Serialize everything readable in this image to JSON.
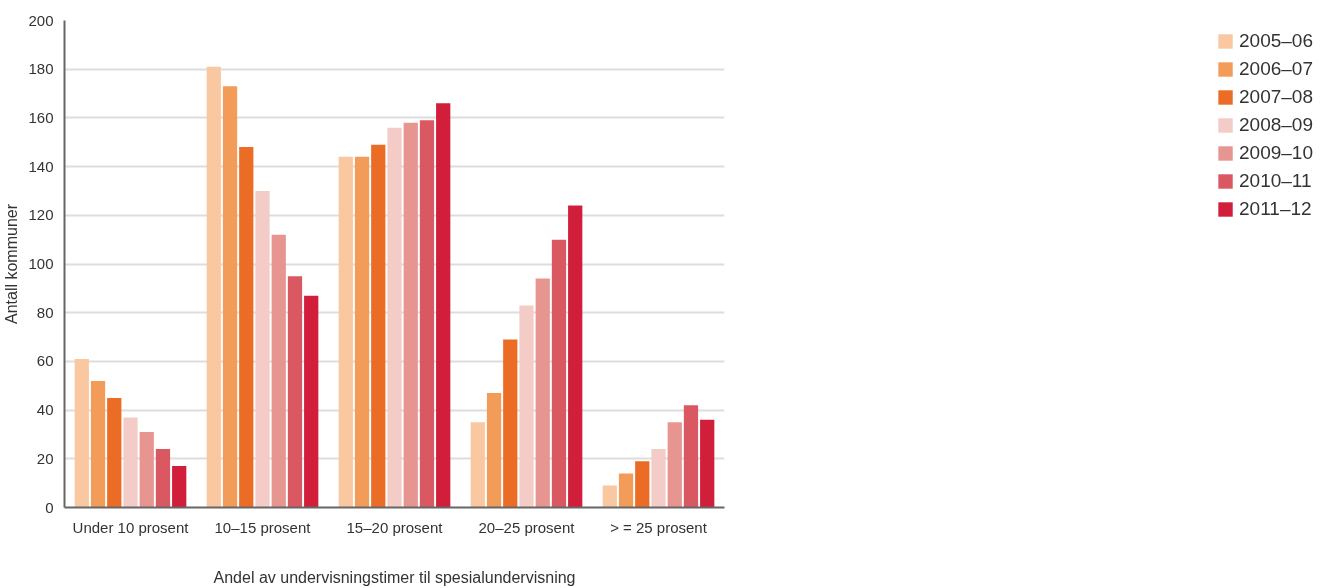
{
  "chart_data": {
    "type": "bar",
    "xlabel": "Andel av undervisningstimer til spesialundervisning",
    "ylabel": "Antall kommuner",
    "categories": [
      "Under 10 prosent",
      "10–15 prosent",
      "15–20 prosent",
      "20–25 prosent",
      "> = 25 prosent"
    ],
    "series": [
      {
        "name": "2005–06",
        "color": "#f9c8a0",
        "values": [
          61,
          181,
          144,
          35,
          9
        ]
      },
      {
        "name": "2006–07",
        "color": "#f39c5a",
        "values": [
          52,
          173,
          144,
          47,
          14
        ]
      },
      {
        "name": "2007–08",
        "color": "#eb6d25",
        "values": [
          45,
          148,
          149,
          69,
          19
        ]
      },
      {
        "name": "2008–09",
        "color": "#f3ccc7",
        "values": [
          37,
          130,
          156,
          83,
          24
        ]
      },
      {
        "name": "2009–10",
        "color": "#e79591",
        "values": [
          31,
          112,
          158,
          94,
          35
        ]
      },
      {
        "name": "2010–11",
        "color": "#da5861",
        "values": [
          24,
          95,
          159,
          110,
          42
        ]
      },
      {
        "name": "2011–12",
        "color": "#d11f3b",
        "values": [
          17,
          87,
          166,
          124,
          36
        ]
      }
    ],
    "ylim": [
      0,
      200
    ],
    "yticks": [
      0,
      20,
      40,
      60,
      80,
      100,
      120,
      140,
      160,
      180,
      200
    ],
    "grid": "y",
    "legend": "top right"
  }
}
